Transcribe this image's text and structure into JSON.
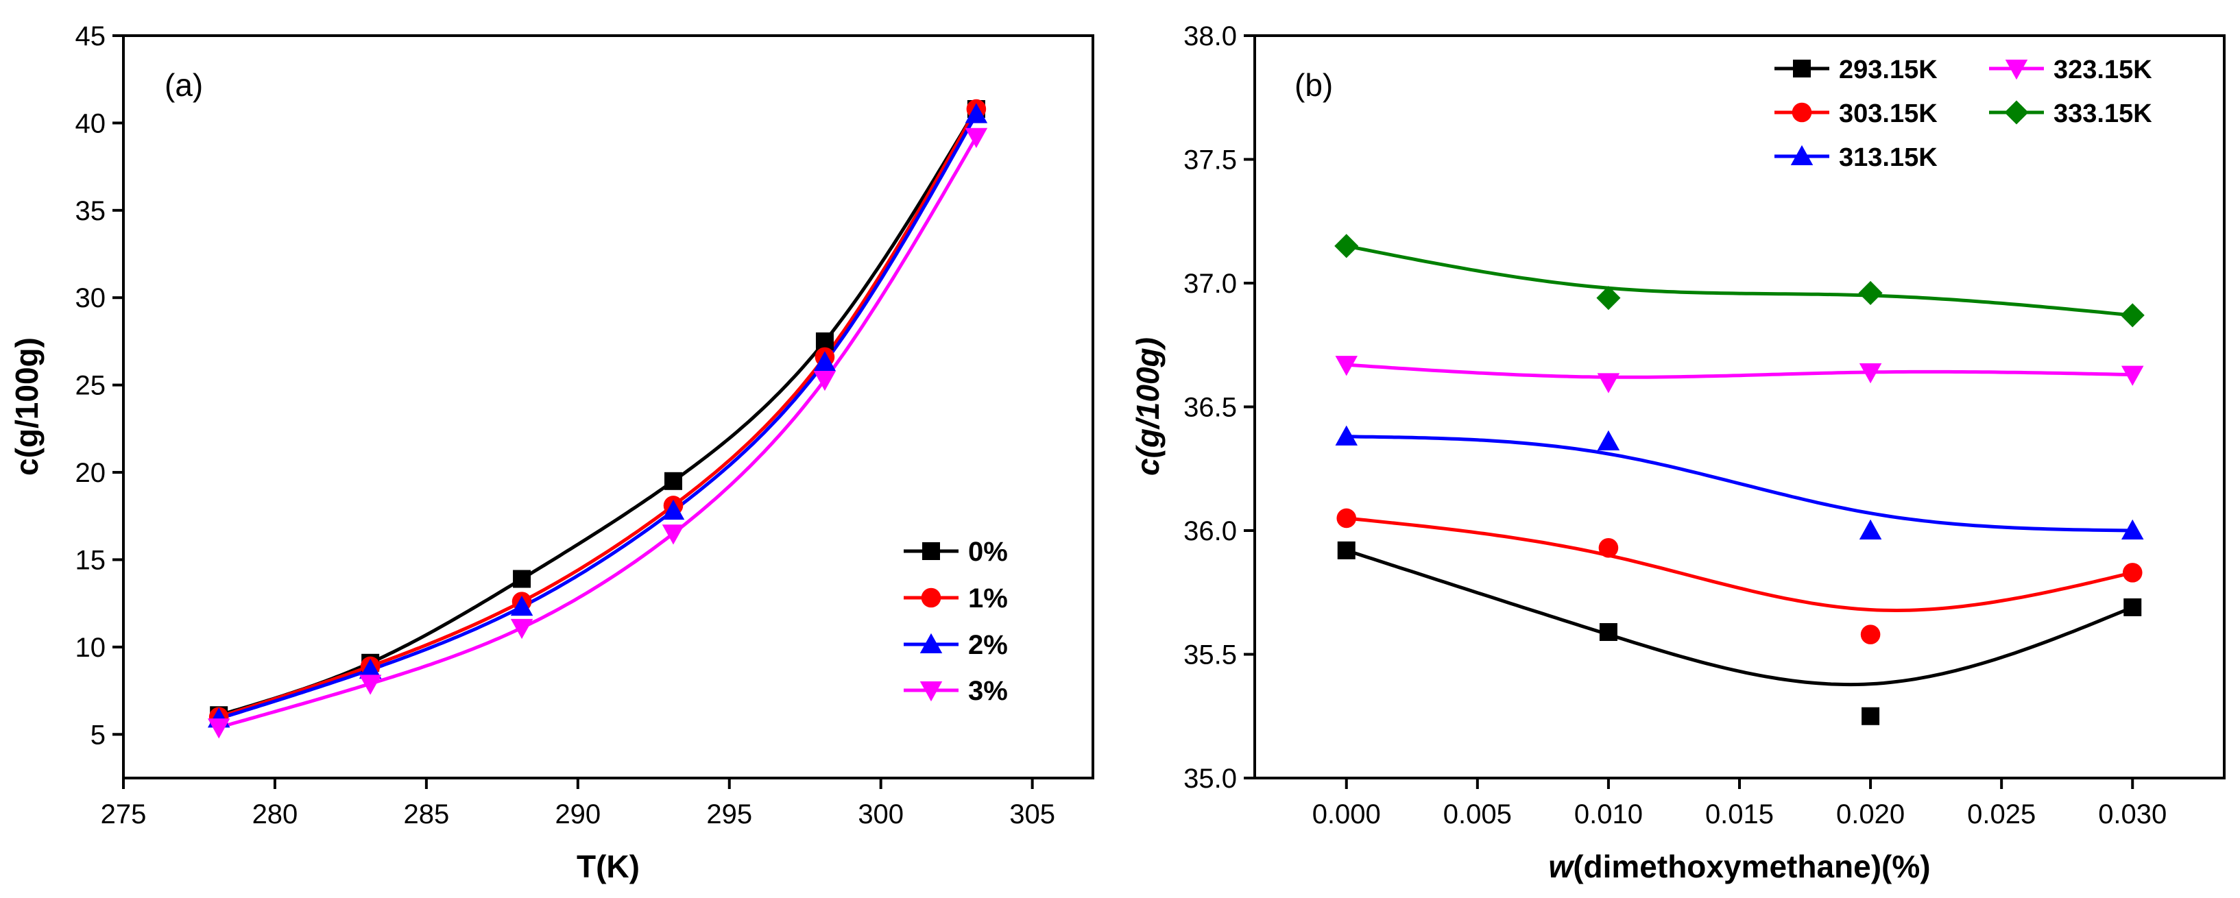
{
  "chart_data": [
    {
      "panel_label": "(a)",
      "type": "line",
      "xlabel": "T(K)",
      "ylabel": "c(g/100g)",
      "xlim": [
        275,
        307
      ],
      "ylim": [
        2.5,
        45
      ],
      "xticks": [
        275,
        280,
        285,
        290,
        295,
        300,
        305
      ],
      "yticks": [
        5,
        10,
        15,
        20,
        25,
        30,
        35,
        40,
        45
      ],
      "xtick_labels": [
        "275",
        "280",
        "285",
        "290",
        "295",
        "300",
        "305"
      ],
      "ytick_labels": [
        "5",
        "10",
        "15",
        "20",
        "25",
        "30",
        "35",
        "40",
        "45"
      ],
      "legend_position": "bottom-right",
      "x": [
        278.15,
        283.15,
        288.15,
        293.15,
        298.15,
        303.15
      ],
      "series": [
        {
          "name": "0%",
          "marker": "square",
          "color": "#000000",
          "values": [
            6.1,
            9.1,
            13.9,
            19.5,
            27.5,
            40.8
          ]
        },
        {
          "name": "1%",
          "marker": "circle",
          "color": "#ff0000",
          "values": [
            6.0,
            8.9,
            12.6,
            18.1,
            26.6,
            40.8
          ]
        },
        {
          "name": "2%",
          "marker": "triangle-up",
          "color": "#0000ff",
          "values": [
            5.9,
            8.7,
            12.3,
            17.8,
            26.3,
            40.5
          ]
        },
        {
          "name": "3%",
          "marker": "triangle-down",
          "color": "#ff00ff",
          "values": [
            5.4,
            7.9,
            11.1,
            16.5,
            25.3,
            39.2
          ]
        }
      ]
    },
    {
      "panel_label": "(b)",
      "type": "line",
      "xlabel_italic": "w",
      "xlabel_rest": "(dimethoxymethane)(%)",
      "ylabel": "c(g/100g)",
      "xlim": [
        -0.0035,
        0.0335
      ],
      "ylim": [
        35.0,
        38.0
      ],
      "xticks": [
        0.0,
        0.005,
        0.01,
        0.015,
        0.02,
        0.025,
        0.03
      ],
      "yticks": [
        35.0,
        35.5,
        36.0,
        36.5,
        37.0,
        37.5,
        38.0
      ],
      "xtick_labels": [
        "0.000",
        "0.005",
        "0.010",
        "0.015",
        "0.020",
        "0.025",
        "0.030"
      ],
      "ytick_labels": [
        "35.0",
        "35.5",
        "36.0",
        "36.5",
        "37.0",
        "37.5",
        "38.0"
      ],
      "legend_position": "top-right",
      "x": [
        0.0,
        0.01,
        0.02,
        0.03
      ],
      "series": [
        {
          "name": "293.15K",
          "marker": "square",
          "color": "#000000",
          "values": [
            35.92,
            35.59,
            35.25,
            35.69
          ],
          "fit": [
            35.92,
            35.58,
            35.38,
            35.69
          ]
        },
        {
          "name": "303.15K",
          "marker": "circle",
          "color": "#ff0000",
          "values": [
            36.05,
            35.93,
            35.58,
            35.83
          ],
          "fit": [
            36.05,
            35.9,
            35.68,
            35.83
          ]
        },
        {
          "name": "313.15K",
          "marker": "triangle-up",
          "color": "#0000ff",
          "values": [
            36.38,
            36.36,
            36.0,
            36.0
          ],
          "fit": [
            36.38,
            36.31,
            36.07,
            36.0
          ]
        },
        {
          "name": "323.15K",
          "marker": "triangle-down",
          "color": "#ff00ff",
          "values": [
            36.67,
            36.6,
            36.64,
            36.63
          ],
          "fit": [
            36.67,
            36.62,
            36.64,
            36.63
          ]
        },
        {
          "name": "333.15K",
          "marker": "diamond",
          "color": "#008000",
          "values": [
            37.15,
            36.94,
            36.96,
            36.87
          ],
          "fit": [
            37.15,
            36.98,
            36.95,
            36.87
          ]
        }
      ]
    }
  ]
}
